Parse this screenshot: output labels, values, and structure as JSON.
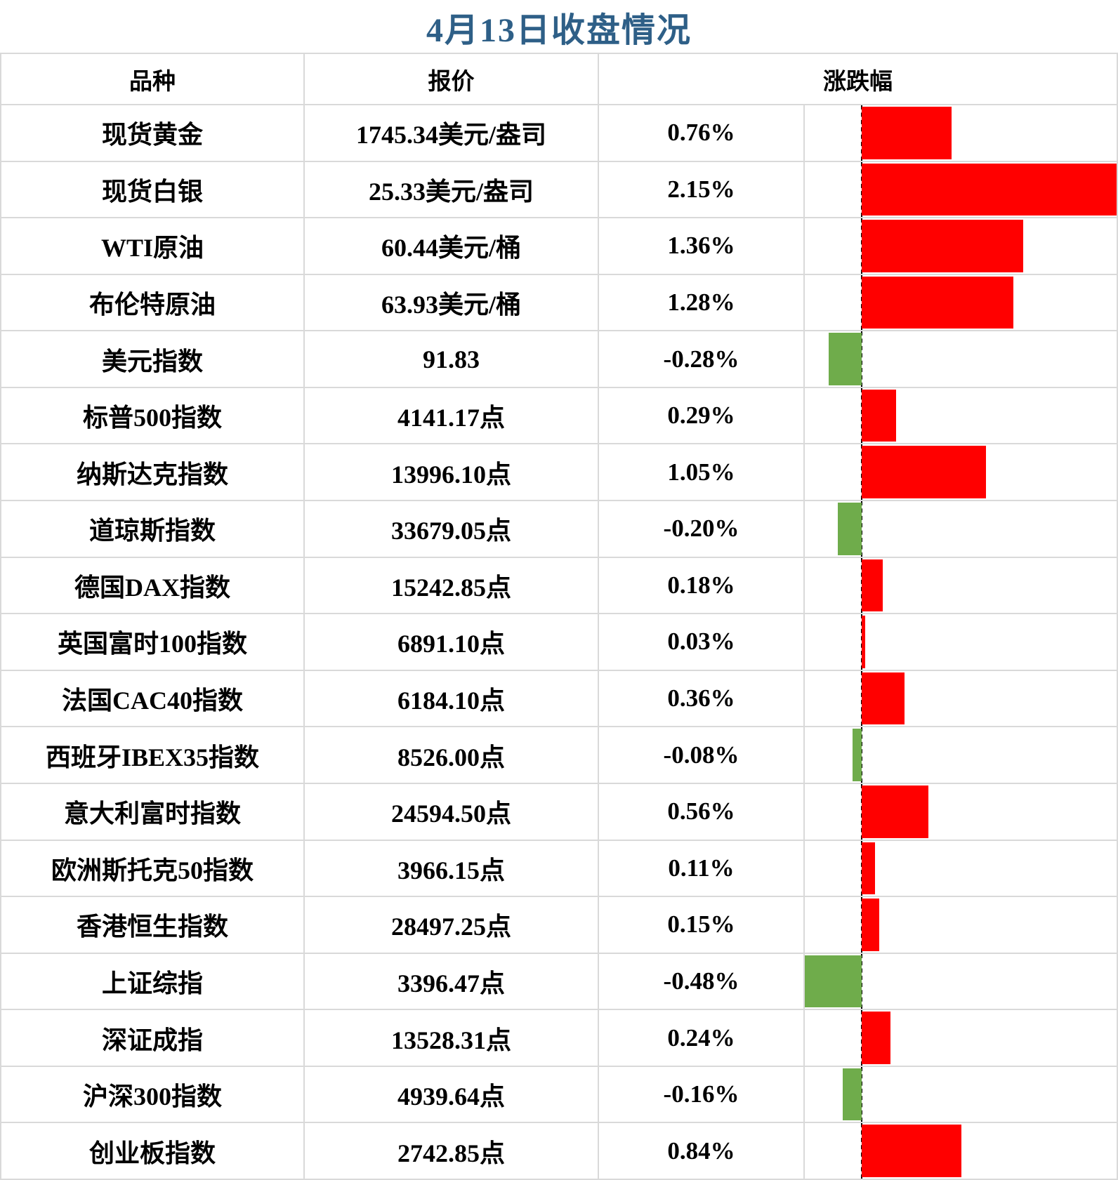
{
  "title": "4月13日收盘情况",
  "header": {
    "instrument": "品种",
    "quote": "报价",
    "change": "涨跌幅"
  },
  "colors": {
    "positive": "#FF0000",
    "negative": "#6FAC4B",
    "title": "#2E5F87",
    "grid": "#D9D9D9",
    "axis": "#000000"
  },
  "rows": [
    {
      "instrument": "现货黄金",
      "quote": "1745.34美元/盎司",
      "change": "0.76%",
      "value": 0.76
    },
    {
      "instrument": "现货白银",
      "quote": "25.33美元/盎司",
      "change": "2.15%",
      "value": 2.15
    },
    {
      "instrument": "WTI原油",
      "quote": "60.44美元/桶",
      "change": "1.36%",
      "value": 1.36
    },
    {
      "instrument": "布伦特原油",
      "quote": "63.93美元/桶",
      "change": "1.28%",
      "value": 1.28
    },
    {
      "instrument": "美元指数",
      "quote": "91.83",
      "change": "-0.28%",
      "value": -0.28
    },
    {
      "instrument": "标普500指数",
      "quote": "4141.17点",
      "change": "0.29%",
      "value": 0.29
    },
    {
      "instrument": "纳斯达克指数",
      "quote": "13996.10点",
      "change": "1.05%",
      "value": 1.05
    },
    {
      "instrument": "道琼斯指数",
      "quote": "33679.05点",
      "change": "-0.20%",
      "value": -0.2
    },
    {
      "instrument": "德国DAX指数",
      "quote": "15242.85点",
      "change": "0.18%",
      "value": 0.18
    },
    {
      "instrument": "英国富时100指数",
      "quote": "6891.10点",
      "change": "0.03%",
      "value": 0.03
    },
    {
      "instrument": "法国CAC40指数",
      "quote": "6184.10点",
      "change": "0.36%",
      "value": 0.36
    },
    {
      "instrument": "西班牙IBEX35指数",
      "quote": "8526.00点",
      "change": "-0.08%",
      "value": -0.08
    },
    {
      "instrument": "意大利富时指数",
      "quote": "24594.50点",
      "change": "0.56%",
      "value": 0.56
    },
    {
      "instrument": "欧洲斯托克50指数",
      "quote": "3966.15点",
      "change": "0.11%",
      "value": 0.11
    },
    {
      "instrument": "香港恒生指数",
      "quote": "28497.25点",
      "change": "0.15%",
      "value": 0.15
    },
    {
      "instrument": "上证综指",
      "quote": "3396.47点",
      "change": "-0.48%",
      "value": -0.48
    },
    {
      "instrument": "深证成指",
      "quote": "13528.31点",
      "change": "0.24%",
      "value": 0.24
    },
    {
      "instrument": "沪深300指数",
      "quote": "4939.64点",
      "change": "-0.16%",
      "value": -0.16
    },
    {
      "instrument": "创业板指数",
      "quote": "2742.85点",
      "change": "0.84%",
      "value": 0.84
    }
  ],
  "chart_data": {
    "type": "bar",
    "orientation": "horizontal",
    "title": "4月13日收盘情况",
    "columns": [
      "品种",
      "报价",
      "涨跌幅"
    ],
    "categories": [
      "现货黄金",
      "现货白银",
      "WTI原油",
      "布伦特原油",
      "美元指数",
      "标普500指数",
      "纳斯达克指数",
      "道琼斯指数",
      "德国DAX指数",
      "英国富时100指数",
      "法国CAC40指数",
      "西班牙IBEX35指数",
      "意大利富时指数",
      "欧洲斯托克50指数",
      "香港恒生指数",
      "上证综指",
      "深证成指",
      "沪深300指数",
      "创业板指数"
    ],
    "quotes": [
      "1745.34美元/盎司",
      "25.33美元/盎司",
      "60.44美元/桶",
      "63.93美元/桶",
      "91.83",
      "4141.17点",
      "13996.10点",
      "33679.05点",
      "15242.85点",
      "6891.10点",
      "6184.10点",
      "8526.00点",
      "24594.50点",
      "3966.15点",
      "28497.25点",
      "3396.47点",
      "13528.31点",
      "4939.64点",
      "2742.85点"
    ],
    "values": [
      0.76,
      2.15,
      1.36,
      1.28,
      -0.28,
      0.29,
      1.05,
      -0.2,
      0.18,
      0.03,
      0.36,
      -0.08,
      0.56,
      0.11,
      0.15,
      -0.48,
      0.24,
      -0.16,
      0.84
    ],
    "value_suffix": "%",
    "xlim": [
      -0.48,
      2.15
    ],
    "zero_axis_style": "dashed-black",
    "positive_color": "#FF0000",
    "negative_color": "#6FAC4B",
    "grid": false,
    "legend": "none"
  }
}
